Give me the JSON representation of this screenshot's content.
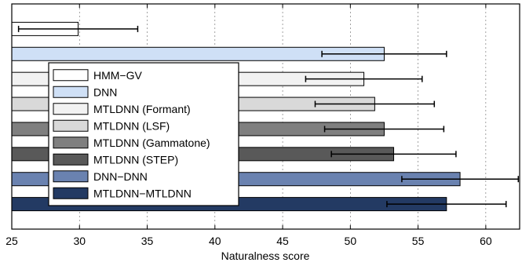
{
  "chart_data": {
    "type": "bar",
    "orientation": "horizontal",
    "title": "",
    "xlabel": "Naturalness score",
    "ylabel": "",
    "xlim": [
      25,
      62.5
    ],
    "xticks": [
      25,
      30,
      35,
      40,
      45,
      50,
      55,
      60
    ],
    "grid": true,
    "error_bars": true,
    "legend_placement": "upper-left",
    "series": [
      {
        "name": "HMM−GV",
        "value": 29.9,
        "err": 4.4,
        "color": "#ffffff"
      },
      {
        "name": "DNN",
        "value": 52.5,
        "err": 4.6,
        "color": "#cfe0f6"
      },
      {
        "name": "MTLDNN (Formant)",
        "value": 51.0,
        "err": 4.3,
        "color": "#f2f2f2"
      },
      {
        "name": "MTLDNN (LSF)",
        "value": 51.8,
        "err": 4.4,
        "color": "#d9d9d9"
      },
      {
        "name": "MTLDNN (Gammatone)",
        "value": 52.5,
        "err": 4.4,
        "color": "#7f7f7f"
      },
      {
        "name": "MTLDNN (STEP)",
        "value": 53.2,
        "err": 4.6,
        "color": "#595959"
      },
      {
        "name": "DNN−DNN",
        "value": 58.1,
        "err": 4.3,
        "color": "#6a82b0"
      },
      {
        "name": "MTLDNN−MTLDNN",
        "value": 57.1,
        "err": 4.4,
        "color": "#233a63"
      }
    ]
  }
}
